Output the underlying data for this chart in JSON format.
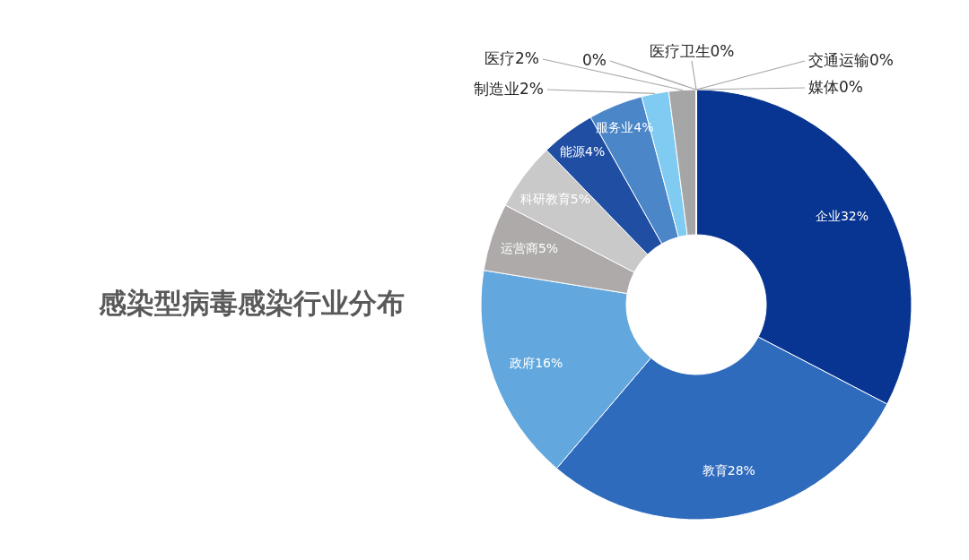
{
  "chart_data": {
    "type": "donut",
    "title": "感染型病毒感染行业分布",
    "categories": [
      "企业",
      "教育",
      "政府",
      "运营商",
      "科研教育",
      "能源",
      "服务业",
      "制造业",
      "医疗",
      null,
      "医疗卫生",
      "交通运输",
      "媒体"
    ],
    "values": [
      32,
      28,
      16,
      5,
      5,
      4,
      4,
      2,
      2,
      0,
      0,
      0,
      0
    ],
    "value_labels": [
      "32%",
      "28%",
      "16%",
      "5%",
      "5%",
      "4%",
      "4%",
      "2%",
      "2%",
      "0%",
      "0%",
      "0%",
      "0%"
    ],
    "colors": [
      "#083591",
      "#2f6bbd",
      "#62a8de",
      "#aeaaaa",
      "#c9c9c9",
      "#1f4ea3",
      "#4a86c8",
      "#7fcbf2",
      "#a6a6a6",
      "#d9d9d9",
      "#1b3b7a",
      "#3e7b3e",
      "#9dc3e6"
    ]
  }
}
